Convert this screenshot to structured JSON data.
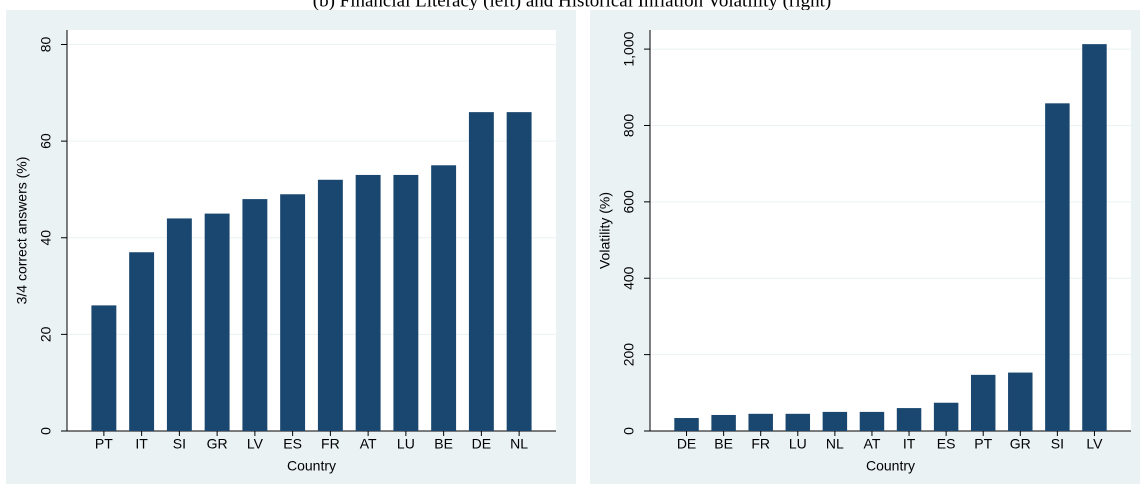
{
  "title": "(b) Financial Literacy (left) and Historical Inflation Volatility (right)",
  "chart_data": [
    {
      "type": "bar",
      "x_label": "Country",
      "y_label": "3/4 correct answers (%)",
      "categories": [
        "PT",
        "IT",
        "SI",
        "GR",
        "LV",
        "ES",
        "FR",
        "AT",
        "LU",
        "BE",
        "DE",
        "NL"
      ],
      "values": [
        26,
        37,
        44,
        45,
        48,
        49,
        52,
        53,
        53,
        55,
        66,
        66
      ],
      "color": "#1a476f",
      "ylim": [
        0,
        83
      ],
      "yticks": [
        0,
        20,
        40,
        60,
        80
      ],
      "grid": true
    },
    {
      "type": "bar",
      "x_label": "Country",
      "y_label": "Volatility (%)",
      "categories": [
        "DE",
        "BE",
        "FR",
        "LU",
        "NL",
        "AT",
        "IT",
        "ES",
        "PT",
        "GR",
        "SI",
        "LV"
      ],
      "values": [
        34,
        42,
        45,
        45,
        50,
        50,
        60,
        74,
        147,
        153,
        858,
        1013
      ],
      "color": "#1a476f",
      "ylim": [
        0,
        1050
      ],
      "yticks": [
        0,
        200,
        400,
        600,
        800,
        {
          "value": 1000,
          "label": "1,000"
        }
      ],
      "grid": true
    }
  ]
}
